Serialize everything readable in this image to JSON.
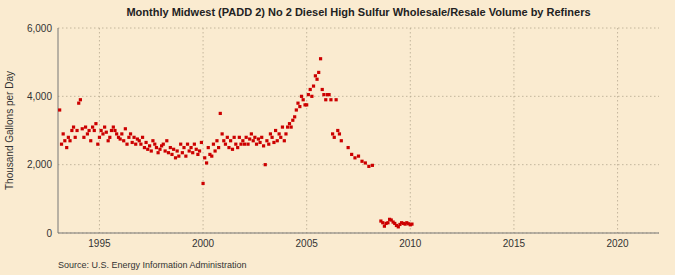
{
  "chart_data": {
    "type": "scatter",
    "title": "Monthly Midwest (PADD 2) No 2 Diesel High Sulfur Wholesale/Resale Volume by Refiners",
    "ylabel": "Thousand Gallons per Day",
    "source": "Source: U.S. Energy Information Administration",
    "color": "#cc0000",
    "marker": "square",
    "grid": true,
    "xlim": [
      1993.0,
      2022.0
    ],
    "ylim": [
      0,
      6000
    ],
    "xticks": [
      1995,
      2000,
      2005,
      2010,
      2015,
      2020
    ],
    "yticks": [
      0,
      {
        "value": 2000,
        "label": "2,000"
      },
      {
        "value": 4000,
        "label": "4,000"
      },
      {
        "value": 6000,
        "label": "6,000"
      }
    ],
    "x": [
      1993.08,
      1993.17,
      1993.25,
      1993.33,
      1993.42,
      1993.5,
      1993.58,
      1993.67,
      1993.75,
      1993.83,
      1993.92,
      1994.0,
      1994.08,
      1994.17,
      1994.25,
      1994.33,
      1994.42,
      1994.5,
      1994.58,
      1994.67,
      1994.75,
      1994.83,
      1994.92,
      1995.0,
      1995.08,
      1995.17,
      1995.25,
      1995.33,
      1995.42,
      1995.5,
      1995.58,
      1995.67,
      1995.75,
      1995.83,
      1995.92,
      1996.0,
      1996.08,
      1996.17,
      1996.25,
      1996.33,
      1996.42,
      1996.5,
      1996.58,
      1996.67,
      1996.75,
      1996.83,
      1996.92,
      1997.0,
      1997.08,
      1997.17,
      1997.25,
      1997.33,
      1997.42,
      1997.5,
      1997.58,
      1997.67,
      1997.75,
      1997.83,
      1997.92,
      1998.0,
      1998.08,
      1998.17,
      1998.25,
      1998.33,
      1998.42,
      1998.5,
      1998.58,
      1998.67,
      1998.75,
      1998.83,
      1998.92,
      1999.0,
      1999.08,
      1999.17,
      1999.25,
      1999.33,
      1999.42,
      1999.5,
      1999.58,
      1999.67,
      1999.75,
      1999.83,
      1999.92,
      2000.0,
      2000.08,
      2000.17,
      2000.25,
      2000.33,
      2000.42,
      2000.5,
      2000.58,
      2000.67,
      2000.75,
      2000.83,
      2000.92,
      2001.0,
      2001.08,
      2001.17,
      2001.25,
      2001.33,
      2001.42,
      2001.5,
      2001.58,
      2001.67,
      2001.75,
      2001.83,
      2001.92,
      2002.0,
      2002.08,
      2002.17,
      2002.25,
      2002.33,
      2002.42,
      2002.5,
      2002.58,
      2002.67,
      2002.75,
      2002.83,
      2002.92,
      2003.0,
      2003.08,
      2003.17,
      2003.25,
      2003.33,
      2003.42,
      2003.5,
      2003.58,
      2003.67,
      2003.75,
      2003.83,
      2003.92,
      2004.0,
      2004.08,
      2004.17,
      2004.25,
      2004.33,
      2004.42,
      2004.5,
      2004.58,
      2004.67,
      2004.75,
      2004.83,
      2004.92,
      2005.0,
      2005.08,
      2005.17,
      2005.25,
      2005.33,
      2005.42,
      2005.5,
      2005.58,
      2005.67,
      2005.75,
      2005.83,
      2005.92,
      2006.0,
      2006.08,
      2006.17,
      2006.25,
      2006.33,
      2006.42,
      2006.5,
      2006.58,
      2006.67,
      2007.0,
      2007.17,
      2007.33,
      2007.5,
      2007.67,
      2007.83,
      2008.0,
      2008.17,
      2008.58,
      2008.67,
      2008.75,
      2008.83,
      2008.92,
      2009.0,
      2009.08,
      2009.17,
      2009.25,
      2009.33,
      2009.42,
      2009.5,
      2009.58,
      2009.67,
      2009.75,
      2009.83,
      2009.92,
      2010.0,
      2010.08
    ],
    "values": [
      3600,
      2600,
      2900,
      2700,
      2500,
      2800,
      2700,
      3000,
      3100,
      2800,
      3000,
      3800,
      3900,
      3050,
      2800,
      3100,
      2900,
      3000,
      2700,
      3100,
      3000,
      3200,
      2600,
      2800,
      3000,
      2900,
      3100,
      2950,
      2700,
      2800,
      3000,
      3100,
      3000,
      2900,
      2800,
      2750,
      2900,
      2700,
      3050,
      2600,
      2800,
      2900,
      2650,
      2800,
      2600,
      2750,
      2700,
      2600,
      2800,
      2500,
      2650,
      2450,
      2550,
      2400,
      2700,
      2600,
      2500,
      2350,
      2450,
      2550,
      2600,
      2400,
      2700,
      2350,
      2500,
      2300,
      2450,
      2200,
      2400,
      2250,
      2600,
      2350,
      2500,
      2250,
      2600,
      2400,
      2500,
      2350,
      2600,
      2450,
      2300,
      2400,
      2650,
      1450,
      2200,
      2050,
      2500,
      2300,
      2250,
      2600,
      2400,
      2700,
      2500,
      3500,
      2900,
      2700,
      2600,
      2800,
      2500,
      2700,
      2450,
      2800,
      2600,
      2500,
      2800,
      2600,
      2700,
      2600,
      2800,
      2600,
      2750,
      2900,
      2700,
      2800,
      2600,
      2750,
      2650,
      2800,
      2550,
      2000,
      2700,
      2600,
      2900,
      2800,
      2650,
      3000,
      2700,
      2900,
      2800,
      3100,
      2700,
      2900,
      3100,
      3200,
      3100,
      3300,
      3400,
      3600,
      3800,
      3700,
      4000,
      3900,
      3750,
      3750,
      4050,
      4200,
      4000,
      4300,
      4600,
      4500,
      4700,
      5100,
      4200,
      4050,
      3900,
      4050,
      4050,
      3900,
      2900,
      2800,
      3900,
      3000,
      2900,
      2700,
      2500,
      2300,
      2200,
      2250,
      2100,
      2050,
      1950,
      1980,
      350,
      300,
      200,
      280,
      300,
      400,
      380,
      320,
      280,
      220,
      180,
      250,
      300,
      280,
      260,
      300,
      270,
      240,
      260
    ]
  }
}
